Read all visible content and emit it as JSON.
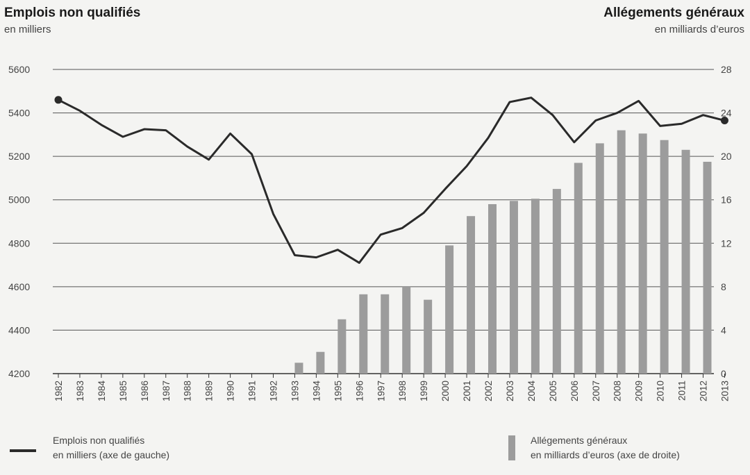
{
  "header": {
    "left_title": "Emplois non qualifiés",
    "left_subtitle": "en milliers",
    "right_title": "Allégements généraux",
    "right_subtitle": "en milliards d’euros"
  },
  "legend": {
    "line_label_1": "Emplois non qualifiés",
    "line_label_2": "en milliers (axe de gauche)",
    "bar_label_1": "Allégements généraux",
    "bar_label_2": "en milliards d’euros (axe de droite)"
  },
  "colors": {
    "line": "#2a2a2a",
    "bar": "#9c9c9c",
    "grid": "#555555"
  },
  "chart_data": {
    "type": "bar",
    "categories": [
      "1982",
      "1983",
      "1984",
      "1985",
      "1986",
      "1987",
      "1988",
      "1989",
      "1990",
      "1991",
      "1992",
      "1993",
      "1994",
      "1995",
      "1996",
      "1997",
      "1998",
      "1999",
      "2000",
      "2001",
      "2002",
      "2003",
      "2004",
      "2005",
      "2006",
      "2007",
      "2008",
      "2009",
      "2010",
      "2011",
      "2012",
      "2013"
    ],
    "series": [
      {
        "name": "Emplois non qualifiés en milliers (axe de gauche)",
        "type": "line",
        "axis": "left",
        "values": [
          5460,
          5410,
          5345,
          5290,
          5325,
          5320,
          5245,
          5185,
          5305,
          5210,
          4935,
          4745,
          4735,
          4770,
          4710,
          4840,
          4870,
          4940,
          5050,
          5155,
          5285,
          5450,
          5470,
          5390,
          5265,
          5365,
          5400,
          5455,
          5340,
          5350,
          5390,
          5365
        ]
      },
      {
        "name": "Allégements généraux en milliards d’euros (axe de droite)",
        "type": "bar",
        "axis": "right",
        "values": [
          0,
          0,
          0,
          0,
          0,
          0,
          0,
          0,
          0,
          0,
          0,
          1,
          2,
          5,
          7.3,
          7.3,
          8,
          6.8,
          11.8,
          14.5,
          15.6,
          15.9,
          16.1,
          17,
          19.4,
          21.2,
          22.4,
          22.1,
          21.5,
          20.6,
          19.5,
          null
        ]
      }
    ],
    "y_left": {
      "lim": [
        4200,
        5600
      ],
      "ticks": [
        4200,
        4400,
        4600,
        4800,
        5000,
        5200,
        5400,
        5600
      ]
    },
    "y_right": {
      "lim": [
        0,
        28
      ],
      "ticks": [
        0,
        4,
        8,
        12,
        16,
        20,
        24,
        28
      ]
    },
    "grid": true,
    "legend_position": "bottom"
  }
}
